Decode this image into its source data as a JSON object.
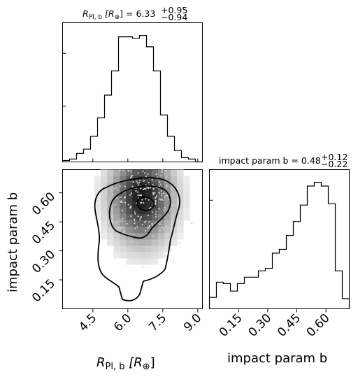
{
  "chart_data": {
    "type": "corner",
    "parameters": [
      {
        "label_main": "R",
        "label_sub": "Pl, b",
        "label_unit_open": "[R",
        "label_unit_sub": "⊕",
        "label_unit_close": "]",
        "title_value": "= 6.33",
        "title_plus": "+0.95",
        "title_minus": "−0.94",
        "range": [
          3.2,
          9.2
        ],
        "ticks": [
          "4.5",
          "6.0",
          "7.5",
          "9.0"
        ],
        "tick_values": [
          4.5,
          6.0,
          7.5,
          9.0
        ]
      },
      {
        "label": "impact param b",
        "title_text": "impact param b = 0.48",
        "title_plus": "+0.12",
        "title_minus": "−0.22",
        "range": [
          0.0,
          0.72
        ],
        "ticks": [
          "0.15",
          "0.30",
          "0.45",
          "0.60"
        ],
        "tick_values": [
          0.15,
          0.3,
          0.45,
          0.6
        ]
      }
    ],
    "hist_R": {
      "x": "R_Pl,b [R_earth]",
      "bin_edges": [
        3.2,
        3.5,
        3.8,
        4.1,
        4.4,
        4.7,
        5.0,
        5.3,
        5.6,
        5.9,
        6.2,
        6.5,
        6.8,
        7.1,
        7.4,
        7.7,
        8.0,
        8.3,
        8.6,
        8.9,
        9.2
      ],
      "counts": [
        1,
        2,
        6,
        9,
        18,
        31,
        47,
        64,
        88,
        88,
        87,
        89,
        81,
        64,
        33,
        18,
        8,
        3,
        2,
        0
      ]
    },
    "hist_b": {
      "x": "impact param b",
      "bin_edges": [
        0.0,
        0.036,
        0.072,
        0.108,
        0.144,
        0.18,
        0.216,
        0.252,
        0.288,
        0.324,
        0.36,
        0.396,
        0.432,
        0.468,
        0.504,
        0.54,
        0.576,
        0.612,
        0.648,
        0.684,
        0.72
      ],
      "counts": [
        9,
        21,
        20,
        14,
        20,
        25,
        25,
        30,
        32,
        44,
        47,
        58,
        69,
        82,
        97,
        100,
        97,
        83,
        30,
        8
      ]
    },
    "scatter": {
      "x_param": "R_Pl,b",
      "y_param": "impact param b",
      "density_peak": [
        6.6,
        0.58
      ],
      "contour_levels": 3
    }
  }
}
